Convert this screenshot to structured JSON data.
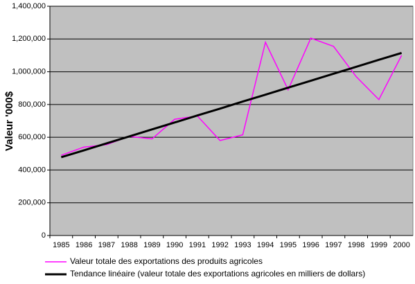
{
  "chart_data": {
    "type": "line",
    "y_label": "Valeur '000$",
    "categories": [
      "1985",
      "1986",
      "1987",
      "1988",
      "1989",
      "1990",
      "1991",
      "1992",
      "1993",
      "1994",
      "1995",
      "1996",
      "1997",
      "1998",
      "1999",
      "2000"
    ],
    "series": [
      {
        "name": "Valeur totale des exportations des produits agricoles",
        "color": "#ff00ff",
        "width": 1.5,
        "values": [
          490000,
          540000,
          555000,
          605000,
          590000,
          710000,
          730000,
          580000,
          615000,
          1180000,
          890000,
          1205000,
          1155000,
          970000,
          830000,
          1100000
        ]
      },
      {
        "name": "Tendance linéaire (valeur totale des exportations agricoles en milliers de dollars)",
        "color": "#000000",
        "width": 3,
        "values": [
          478000,
          520000,
          563000,
          605000,
          648000,
          690000,
          733000,
          775000,
          818000,
          860000,
          903000,
          945000,
          988000,
          1030000,
          1073000,
          1115000
        ]
      }
    ],
    "ylim": [
      0,
      1400000
    ],
    "yticks": [
      {
        "value": 0,
        "label": "0"
      },
      {
        "value": 200000,
        "label": "200,000"
      },
      {
        "value": 400000,
        "label": "400,000"
      },
      {
        "value": 600000,
        "label": "600,000"
      },
      {
        "value": 800000,
        "label": "800,000"
      },
      {
        "value": 1000000,
        "label": "1,000,000"
      },
      {
        "value": 1200000,
        "label": "1,200,000"
      },
      {
        "value": 1400000,
        "label": "1,400,000"
      }
    ],
    "grid": true,
    "legend": "bottom",
    "plot_background": "#c0c0c0"
  }
}
